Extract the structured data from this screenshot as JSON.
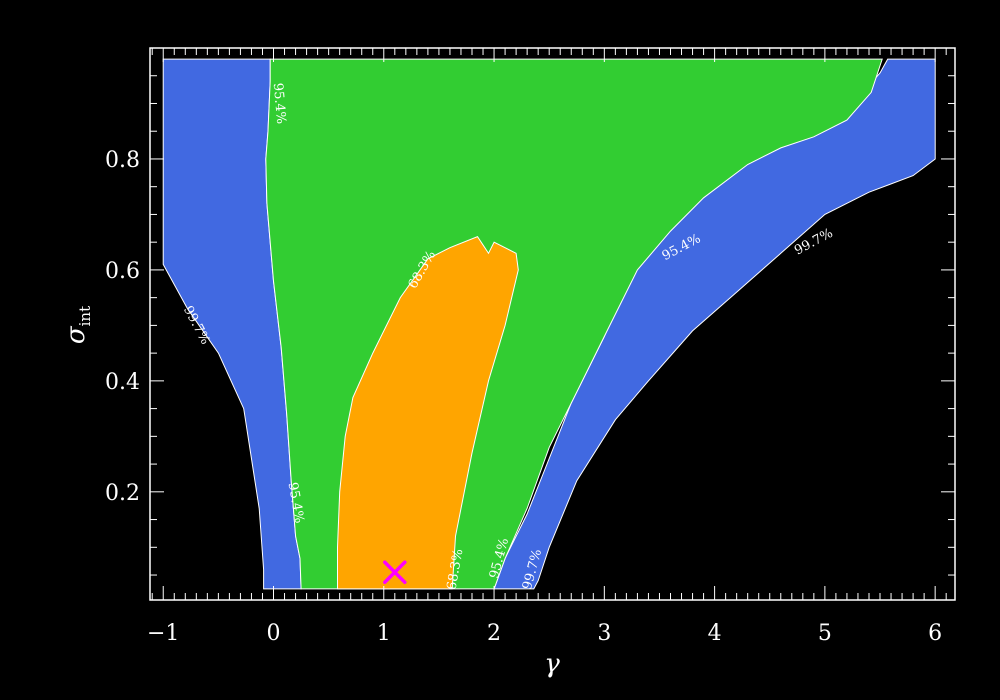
{
  "chart_data": {
    "type": "contour",
    "xlabel": "γ",
    "ylabel": "σ",
    "ylabel_subscript": "int",
    "xlim": [
      -1.12,
      6.18
    ],
    "ylim": [
      0.005,
      1.0
    ],
    "x_ticks": [
      -1,
      0,
      1,
      2,
      3,
      4,
      5,
      6
    ],
    "x_tick_labels": [
      "−1",
      "0",
      "1",
      "2",
      "3",
      "4",
      "5",
      "6"
    ],
    "y_ticks": [
      0.2,
      0.4,
      0.6,
      0.8
    ],
    "y_tick_labels": [
      "0.2",
      "0.4",
      "0.6",
      "0.8"
    ],
    "grid": false,
    "background": "#000000",
    "regions": [
      {
        "level": "99.7%",
        "color": "#4169E1",
        "polygon": [
          [
            -1.0,
            0.98
          ],
          [
            -0.03,
            0.98
          ],
          [
            -0.03,
            0.94
          ],
          [
            -0.05,
            0.85
          ],
          [
            -0.07,
            0.8
          ],
          [
            -0.06,
            0.72
          ],
          [
            0.0,
            0.58
          ],
          [
            0.07,
            0.46
          ],
          [
            0.12,
            0.34
          ],
          [
            0.16,
            0.22
          ],
          [
            0.2,
            0.12
          ],
          [
            0.24,
            0.08
          ],
          [
            0.25,
            0.025
          ],
          [
            -0.09,
            0.025
          ],
          [
            -0.09,
            0.06
          ],
          [
            -0.13,
            0.17
          ],
          [
            -0.27,
            0.35
          ],
          [
            -0.5,
            0.45
          ],
          [
            -0.78,
            0.53
          ],
          [
            -1.0,
            0.61
          ]
        ]
      },
      {
        "level": "99.7%",
        "color": "#4169E1",
        "polygon": [
          [
            2.0,
            0.025
          ],
          [
            2.36,
            0.025
          ],
          [
            2.4,
            0.04
          ],
          [
            2.5,
            0.1
          ],
          [
            2.75,
            0.22
          ],
          [
            3.1,
            0.33
          ],
          [
            3.4,
            0.4
          ],
          [
            3.8,
            0.49
          ],
          [
            4.2,
            0.56
          ],
          [
            4.6,
            0.63
          ],
          [
            5.0,
            0.7
          ],
          [
            5.4,
            0.74
          ],
          [
            5.8,
            0.77
          ],
          [
            6.0,
            0.8
          ],
          [
            6.0,
            0.98
          ],
          [
            5.57,
            0.98
          ],
          [
            5.5,
            0.955
          ],
          [
            5.3,
            0.91
          ],
          [
            5.0,
            0.87
          ],
          [
            4.6,
            0.84
          ],
          [
            4.2,
            0.79
          ],
          [
            3.8,
            0.73
          ],
          [
            3.5,
            0.66
          ],
          [
            3.2,
            0.58
          ],
          [
            3.0,
            0.48
          ],
          [
            2.7,
            0.36
          ],
          [
            2.5,
            0.26
          ],
          [
            2.3,
            0.16
          ],
          [
            2.1,
            0.08
          ]
        ]
      },
      {
        "level": "95.4%",
        "color": "#32CD32",
        "polygon": [
          [
            -0.03,
            0.98
          ],
          [
            5.52,
            0.98
          ],
          [
            5.42,
            0.92
          ],
          [
            5.2,
            0.87
          ],
          [
            4.9,
            0.84
          ],
          [
            4.6,
            0.82
          ],
          [
            4.3,
            0.79
          ],
          [
            3.9,
            0.73
          ],
          [
            3.6,
            0.67
          ],
          [
            3.3,
            0.6
          ],
          [
            3.05,
            0.5
          ],
          [
            2.8,
            0.4
          ],
          [
            2.5,
            0.28
          ],
          [
            2.3,
            0.17
          ],
          [
            2.1,
            0.08
          ],
          [
            2.0,
            0.025
          ],
          [
            0.25,
            0.025
          ],
          [
            0.24,
            0.08
          ],
          [
            0.2,
            0.12
          ],
          [
            0.16,
            0.22
          ],
          [
            0.12,
            0.34
          ],
          [
            0.07,
            0.46
          ],
          [
            0.0,
            0.58
          ],
          [
            -0.06,
            0.72
          ],
          [
            -0.07,
            0.8
          ],
          [
            -0.05,
            0.85
          ],
          [
            -0.03,
            0.94
          ]
        ]
      },
      {
        "level": "68.3%",
        "color": "#FFA500",
        "polygon": [
          [
            0.58,
            0.025
          ],
          [
            1.62,
            0.025
          ],
          [
            1.65,
            0.12
          ],
          [
            1.8,
            0.27
          ],
          [
            1.95,
            0.4
          ],
          [
            2.1,
            0.5
          ],
          [
            2.22,
            0.6
          ],
          [
            2.2,
            0.63
          ],
          [
            2.0,
            0.65
          ],
          [
            1.95,
            0.63
          ],
          [
            1.85,
            0.66
          ],
          [
            1.6,
            0.64
          ],
          [
            1.4,
            0.62
          ],
          [
            1.15,
            0.55
          ],
          [
            0.9,
            0.45
          ],
          [
            0.72,
            0.37
          ],
          [
            0.65,
            0.3
          ],
          [
            0.6,
            0.2
          ],
          [
            0.58,
            0.1
          ]
        ]
      }
    ],
    "contour_labels": [
      {
        "text": "95.4%",
        "x": 0.05,
        "y": 0.9,
        "angle": 85
      },
      {
        "text": "99.7%",
        "x": -0.7,
        "y": 0.5,
        "angle": 62
      },
      {
        "text": "95.4%",
        "x": 0.2,
        "y": 0.18,
        "angle": 80
      },
      {
        "text": "68.3%",
        "x": 1.35,
        "y": 0.6,
        "angle": -60
      },
      {
        "text": "68.3%",
        "x": 1.65,
        "y": 0.06,
        "angle": -80
      },
      {
        "text": "95.4%",
        "x": 2.05,
        "y": 0.08,
        "angle": -75
      },
      {
        "text": "99.7%",
        "x": 2.35,
        "y": 0.06,
        "angle": -75
      },
      {
        "text": "95.4%",
        "x": 3.7,
        "y": 0.64,
        "angle": -28
      },
      {
        "text": "99.7%",
        "x": 4.9,
        "y": 0.65,
        "angle": -28
      }
    ],
    "best_fit_marker": {
      "x": 1.1,
      "y": 0.055,
      "color": "#FF00FF",
      "symbol": "x"
    }
  }
}
